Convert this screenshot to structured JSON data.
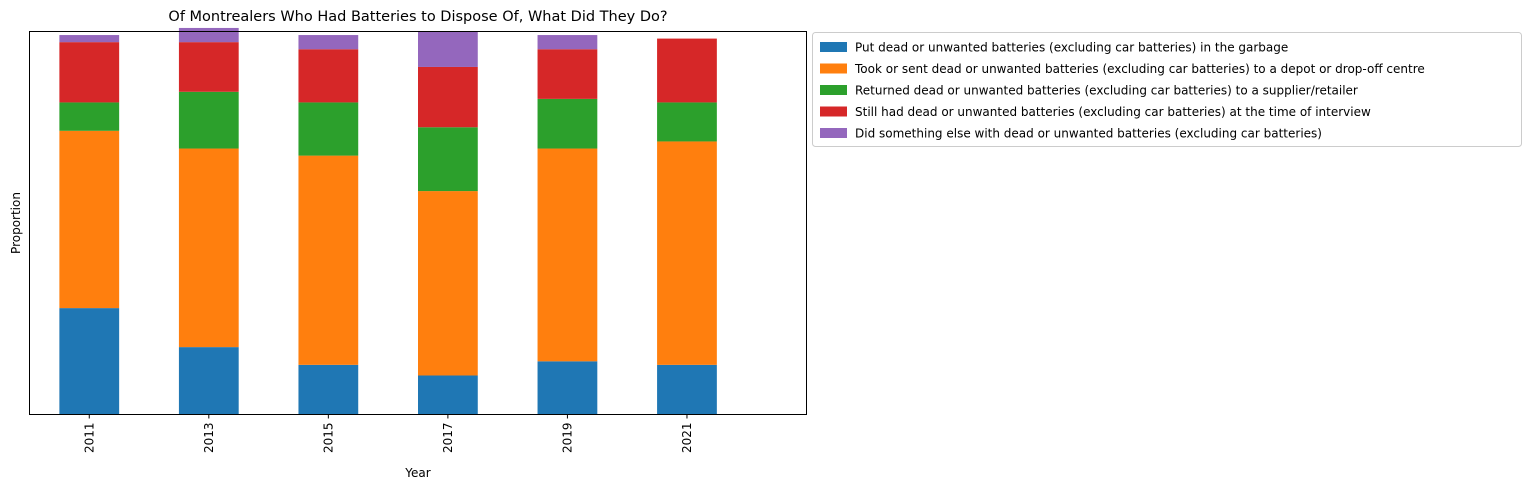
{
  "chart_data": {
    "type": "bar",
    "stacked": true,
    "title": "Of Montrealers Who Had Batteries to Dispose Of, What Did They Do?",
    "xlabel": "Year",
    "ylabel": "Proportion",
    "y_tick_labels_shown": false,
    "ylim": [
      0,
      1.08
    ],
    "grid": false,
    "legend_position": "outside upper right",
    "categories": [
      "2011",
      "2013",
      "2015",
      "2017",
      "2019",
      "2021"
    ],
    "series": [
      {
        "name": "Put dead or unwanted batteries (excluding car batteries) in the garbage",
        "color": "#1f77b4",
        "values": [
          0.3,
          0.19,
          0.14,
          0.11,
          0.15,
          0.14
        ]
      },
      {
        "name": "Took or sent dead or unwanted batteries (excluding car batteries) to a depot or drop-off centre",
        "color": "#ff7f0e",
        "values": [
          0.5,
          0.56,
          0.59,
          0.52,
          0.6,
          0.63
        ]
      },
      {
        "name": "Returned dead or unwanted batteries (excluding car batteries) to a supplier/retailer",
        "color": "#2ca02c",
        "values": [
          0.08,
          0.16,
          0.15,
          0.18,
          0.14,
          0.11
        ]
      },
      {
        "name": "Still had dead or unwanted batteries (excluding car batteries) at the time of interview",
        "color": "#d62728",
        "values": [
          0.17,
          0.14,
          0.15,
          0.17,
          0.14,
          0.18
        ]
      },
      {
        "name": "Did something else with dead or unwanted batteries (excluding car batteries)",
        "color": "#9467bd",
        "values": [
          0.02,
          0.04,
          0.04,
          0.1,
          0.04,
          0.0
        ]
      }
    ]
  }
}
